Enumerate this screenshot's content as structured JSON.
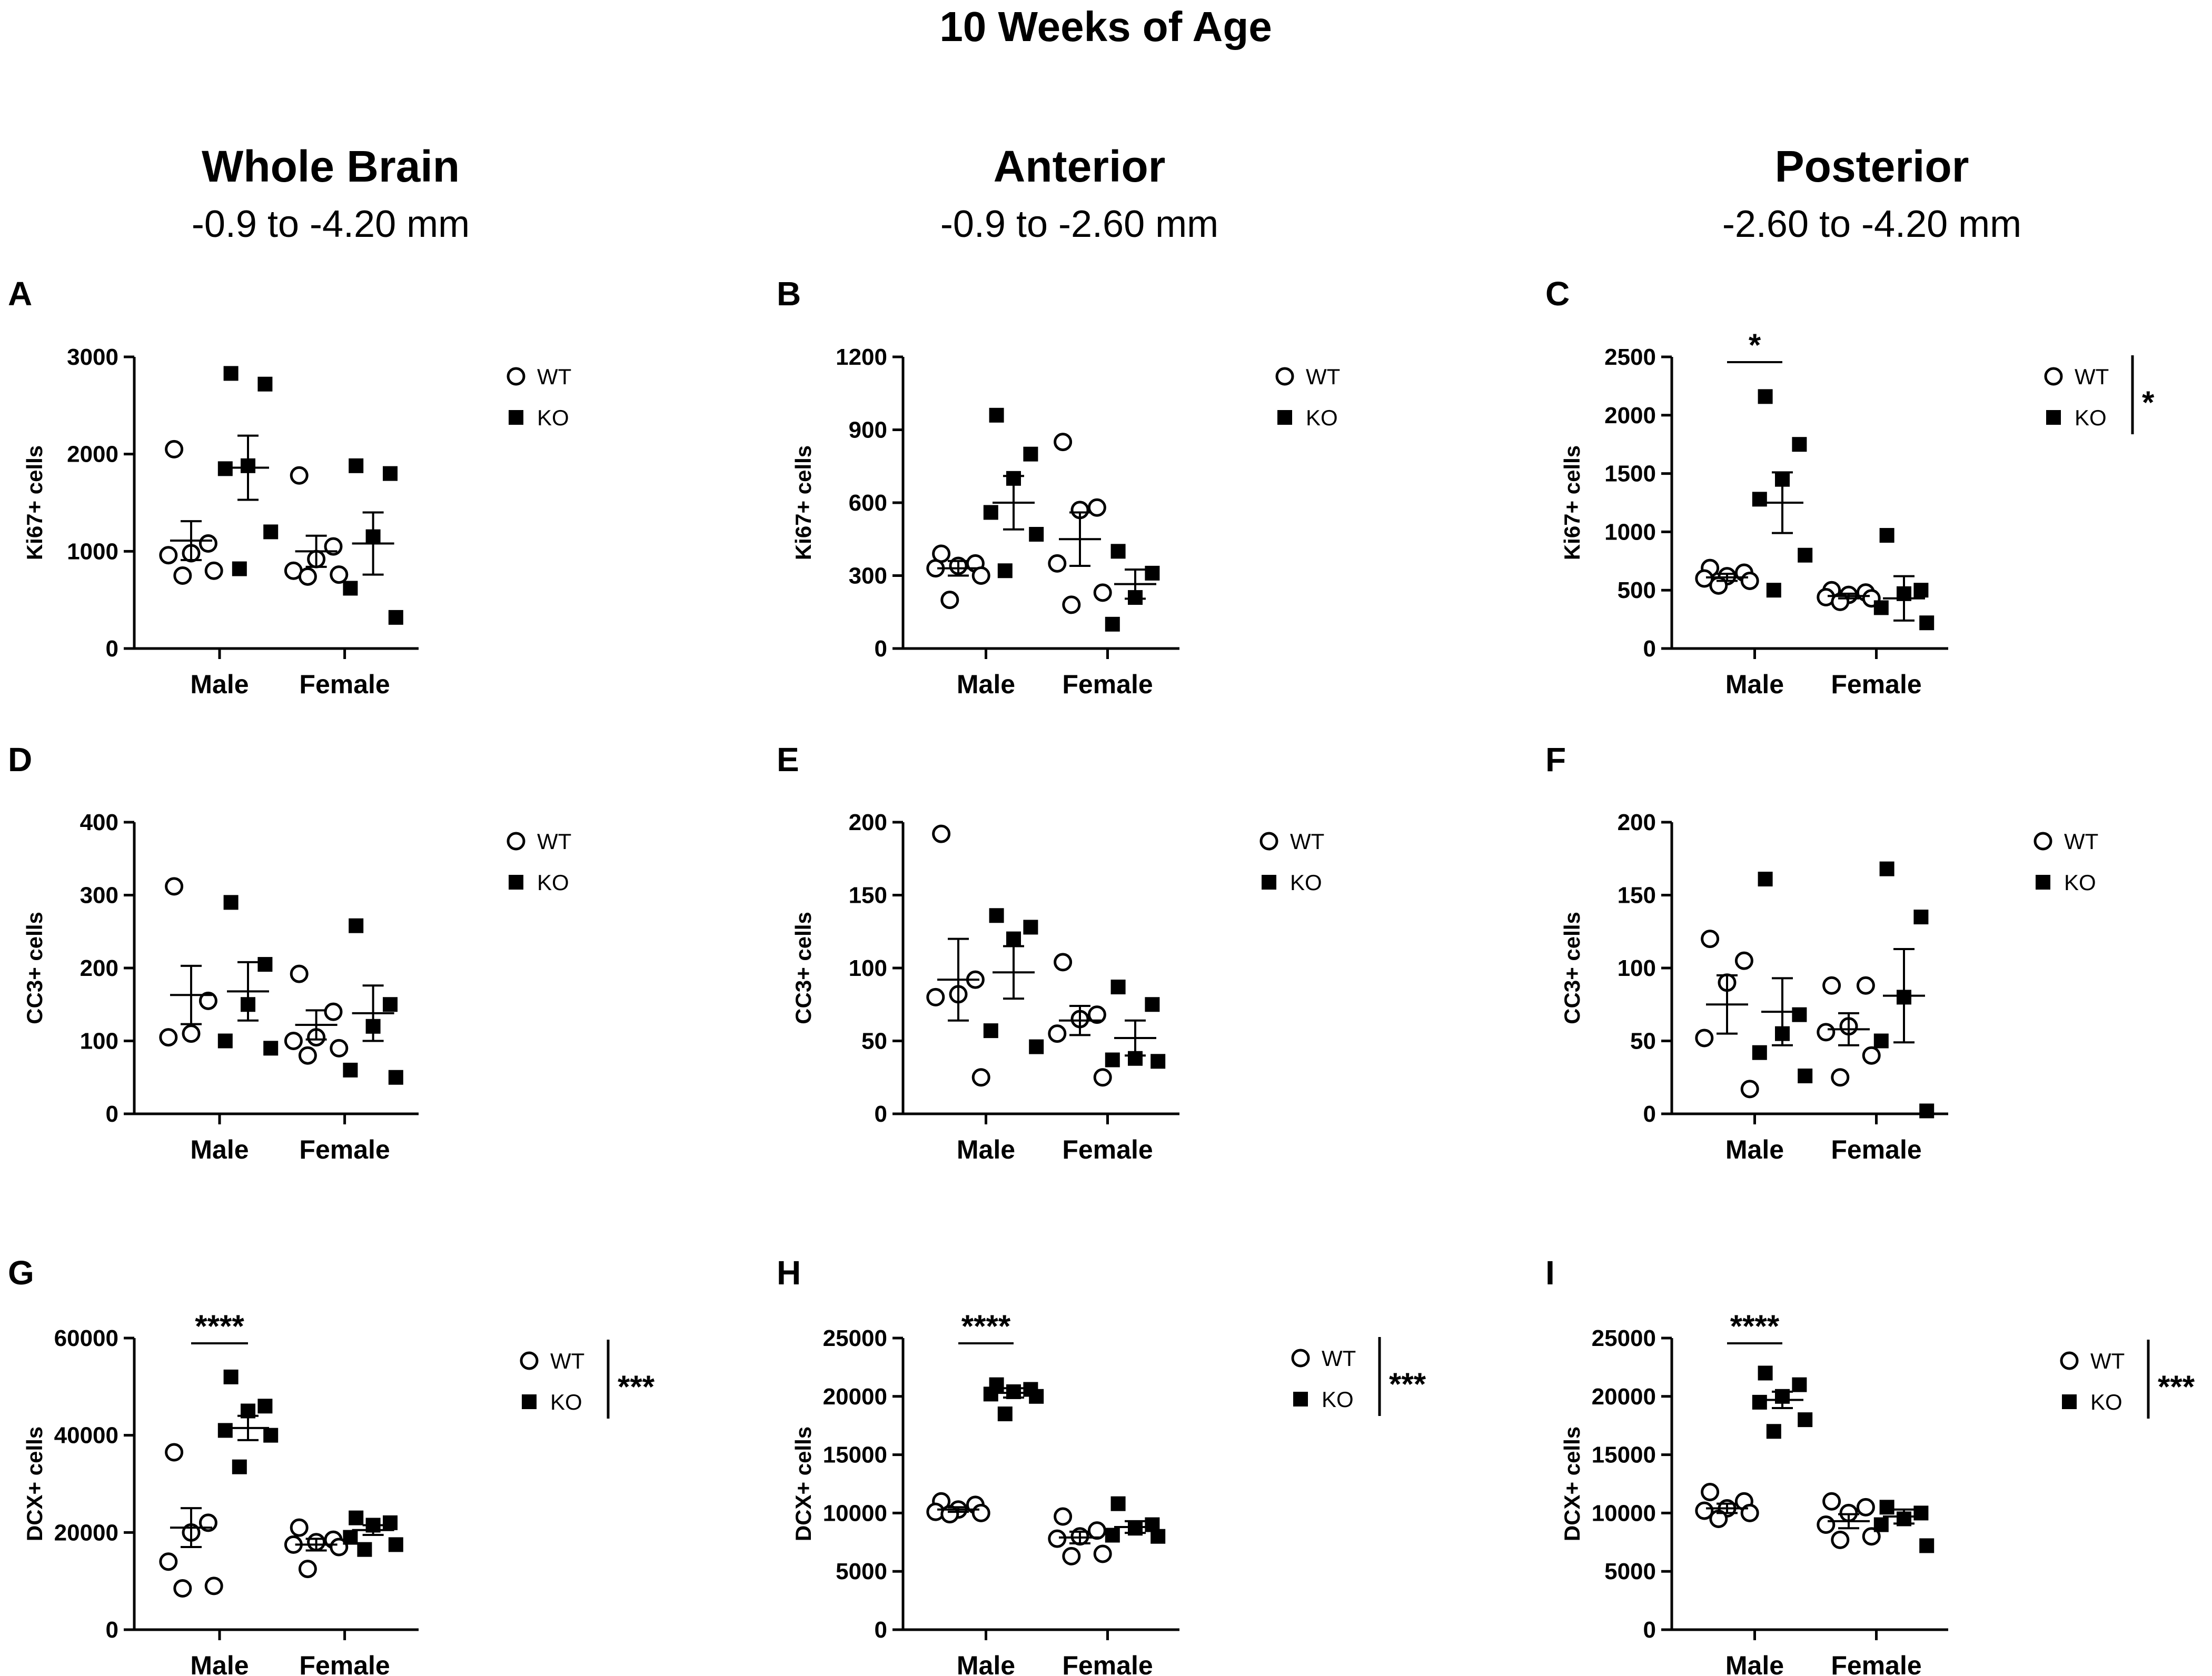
{
  "figure": {
    "title": "10 Weeks of Age",
    "columns": [
      {
        "title": "Whole Brain",
        "subtitle": "-0.9 to -4.20 mm"
      },
      {
        "title": "Anterior",
        "subtitle": "-0.9 to -2.60 mm"
      },
      {
        "title": "Posterior",
        "subtitle": "-2.60 to -4.20 mm"
      }
    ]
  },
  "colors": {
    "wt_fill": "#ffffff",
    "ko_fill": "#000000",
    "stroke": "#000000"
  },
  "chart_data": [
    {
      "panel": "A",
      "type": "scatter",
      "ylabel": "Ki67+ cells",
      "ylim": [
        0,
        3000
      ],
      "yticks": [
        0,
        1000,
        2000,
        3000
      ],
      "categories": [
        "Male",
        "Female"
      ],
      "legend": [
        "WT",
        "KO"
      ],
      "legend_sig": "",
      "legend_position": "right",
      "series": [
        {
          "name": "WT",
          "marker": "circle",
          "points": [
            [
              2050,
              1080,
              980,
              960,
              800,
              750
            ],
            [
              1780,
              1050,
              920,
              800,
              760,
              740
            ]
          ],
          "mean": [
            1110,
            1000
          ],
          "sem": [
            200,
            160
          ]
        },
        {
          "name": "KO",
          "marker": "square",
          "points": [
            [
              2830,
              2720,
              1880,
              1850,
              1200,
              820
            ],
            [
              1880,
              1800,
              1150,
              620,
              320
            ]
          ],
          "mean": [
            1860,
            1080
          ],
          "sem": [
            330,
            320
          ]
        }
      ],
      "comparisons": []
    },
    {
      "panel": "B",
      "type": "scatter",
      "ylabel": "Ki67+ cells",
      "ylim": [
        0,
        1200
      ],
      "yticks": [
        0,
        300,
        600,
        900,
        1200
      ],
      "categories": [
        "Male",
        "Female"
      ],
      "legend": [
        "WT",
        "KO"
      ],
      "legend_sig": "",
      "legend_position": "right",
      "series": [
        {
          "name": "WT",
          "marker": "circle",
          "points": [
            [
              390,
              350,
              340,
              330,
              300,
              200
            ],
            [
              850,
              580,
              570,
              350,
              230,
              180
            ]
          ],
          "mean": [
            330,
            450
          ],
          "sem": [
            30,
            110
          ]
        },
        {
          "name": "KO",
          "marker": "square",
          "points": [
            [
              960,
              800,
              700,
              560,
              470,
              320
            ],
            [
              400,
              310,
              210,
              100
            ]
          ],
          "mean": [
            600,
            265
          ],
          "sem": [
            110,
            60
          ]
        }
      ],
      "comparisons": []
    },
    {
      "panel": "C",
      "type": "scatter",
      "ylabel": "Ki67+ cells",
      "ylim": [
        0,
        2500
      ],
      "yticks": [
        0,
        500,
        1000,
        1500,
        2000,
        2500
      ],
      "categories": [
        "Male",
        "Female"
      ],
      "legend": [
        "WT",
        "KO"
      ],
      "legend_sig": "*",
      "legend_position": "right",
      "series": [
        {
          "name": "WT",
          "marker": "circle",
          "points": [
            [
              690,
              650,
              620,
              600,
              580,
              540
            ],
            [
              500,
              480,
              460,
              440,
              430,
              400
            ]
          ],
          "mean": [
            610,
            450
          ],
          "sem": [
            30,
            20
          ]
        },
        {
          "name": "KO",
          "marker": "square",
          "points": [
            [
              2160,
              1750,
              1450,
              1280,
              800,
              500
            ],
            [
              970,
              500,
              470,
              350,
              220
            ]
          ],
          "mean": [
            1250,
            430
          ],
          "sem": [
            260,
            190
          ]
        }
      ],
      "comparisons": [
        {
          "category": "Male",
          "label": "*"
        }
      ]
    },
    {
      "panel": "D",
      "type": "scatter",
      "ylabel": "CC3+ cells",
      "ylim": [
        0,
        400
      ],
      "yticks": [
        0,
        100,
        200,
        300,
        400
      ],
      "categories": [
        "Male",
        "Female"
      ],
      "legend": [
        "WT",
        "KO"
      ],
      "legend_sig": "",
      "legend_position": "right",
      "series": [
        {
          "name": "WT",
          "marker": "circle",
          "points": [
            [
              312,
              155,
              110,
              105
            ],
            [
              192,
              140,
              105,
              100,
              90,
              80
            ]
          ],
          "mean": [
            163,
            122
          ],
          "sem": [
            40,
            20
          ]
        },
        {
          "name": "KO",
          "marker": "square",
          "points": [
            [
              290,
              205,
              150,
              100,
              90
            ],
            [
              258,
              150,
              120,
              60,
              50
            ]
          ],
          "mean": [
            168,
            138
          ],
          "sem": [
            40,
            38
          ]
        }
      ],
      "comparisons": []
    },
    {
      "panel": "E",
      "type": "scatter",
      "ylabel": "CC3+ cells",
      "ylim": [
        0,
        200
      ],
      "yticks": [
        0,
        50,
        100,
        150,
        200
      ],
      "categories": [
        "Male",
        "Female"
      ],
      "legend": [
        "WT",
        "KO"
      ],
      "legend_sig": "",
      "legend_position": "right",
      "series": [
        {
          "name": "WT",
          "marker": "circle",
          "points": [
            [
              192,
              92,
              82,
              80,
              25
            ],
            [
              104,
              68,
              65,
              55,
              25
            ]
          ],
          "mean": [
            92,
            64
          ],
          "sem": [
            28,
            10
          ]
        },
        {
          "name": "KO",
          "marker": "square",
          "points": [
            [
              136,
              128,
              120,
              57,
              46
            ],
            [
              87,
              75,
              38,
              37,
              36
            ]
          ],
          "mean": [
            97,
            52
          ],
          "sem": [
            18,
            12
          ]
        }
      ],
      "comparisons": []
    },
    {
      "panel": "F",
      "type": "scatter",
      "ylabel": "CC3+ cells",
      "ylim": [
        0,
        200
      ],
      "yticks": [
        0,
        50,
        100,
        150,
        200
      ],
      "categories": [
        "Male",
        "Female"
      ],
      "legend": [
        "WT",
        "KO"
      ],
      "legend_sig": "",
      "legend_position": "right",
      "series": [
        {
          "name": "WT",
          "marker": "circle",
          "points": [
            [
              120,
              105,
              90,
              52,
              17
            ],
            [
              88,
              88,
              60,
              56,
              40,
              25
            ]
          ],
          "mean": [
            75,
            58
          ],
          "sem": [
            20,
            11
          ]
        },
        {
          "name": "KO",
          "marker": "square",
          "points": [
            [
              161,
              68,
              55,
              42,
              26
            ],
            [
              168,
              135,
              80,
              50,
              2
            ]
          ],
          "mean": [
            70,
            81
          ],
          "sem": [
            23,
            32
          ]
        }
      ],
      "comparisons": []
    },
    {
      "panel": "G",
      "type": "scatter",
      "ylabel": "DCX+ cells",
      "ylim": [
        0,
        60000
      ],
      "yticks": [
        0,
        20000,
        40000,
        60000
      ],
      "categories": [
        "Male",
        "Female"
      ],
      "legend": [
        "WT",
        "KO"
      ],
      "legend_sig": "***",
      "legend_position": "right",
      "series": [
        {
          "name": "WT",
          "marker": "circle",
          "points": [
            [
              36500,
              22000,
              20000,
              14000,
              9000,
              8500
            ],
            [
              21000,
              18500,
              18000,
              17500,
              17000,
              12500
            ]
          ],
          "mean": [
            21000,
            17500
          ],
          "sem": [
            4000,
            1200
          ]
        },
        {
          "name": "KO",
          "marker": "square",
          "points": [
            [
              52000,
              46000,
              45000,
              41000,
              40000,
              33500
            ],
            [
              23000,
              22000,
              21500,
              19000,
              17500,
              16500
            ]
          ],
          "mean": [
            41500,
            20500
          ],
          "sem": [
            2500,
            1000
          ]
        }
      ],
      "comparisons": [
        {
          "category": "Male",
          "label": "****"
        }
      ]
    },
    {
      "panel": "H",
      "type": "scatter",
      "ylabel": "DCX+ cells",
      "ylim": [
        0,
        25000
      ],
      "yticks": [
        0,
        5000,
        10000,
        15000,
        20000,
        25000
      ],
      "categories": [
        "Male",
        "Female"
      ],
      "legend": [
        "WT",
        "KO"
      ],
      "legend_sig": "***",
      "legend_position": "right",
      "series": [
        {
          "name": "WT",
          "marker": "circle",
          "points": [
            [
              11000,
              10700,
              10300,
              10100,
              10000,
              9900
            ],
            [
              9700,
              8500,
              8000,
              7800,
              6500,
              6300
            ]
          ],
          "mean": [
            10300,
            7900
          ],
          "sem": [
            200,
            500
          ]
        },
        {
          "name": "KO",
          "marker": "square",
          "points": [
            [
              21000,
              20600,
              20400,
              20200,
              20000,
              18500
            ],
            [
              10800,
              9000,
              8700,
              8100,
              8000
            ]
          ],
          "mean": [
            20300,
            8800
          ],
          "sem": [
            400,
            500
          ]
        }
      ],
      "comparisons": [
        {
          "category": "Male",
          "label": "****"
        }
      ]
    },
    {
      "panel": "I",
      "type": "scatter",
      "ylabel": "DCX+ cells",
      "ylim": [
        0,
        25000
      ],
      "yticks": [
        0,
        5000,
        10000,
        15000,
        20000,
        25000
      ],
      "categories": [
        "Male",
        "Female"
      ],
      "legend": [
        "WT",
        "KO"
      ],
      "legend_sig": "***",
      "legend_position": "right",
      "series": [
        {
          "name": "WT",
          "marker": "circle",
          "points": [
            [
              11800,
              11000,
              10400,
              10200,
              10000,
              9500
            ],
            [
              11000,
              10500,
              10000,
              9000,
              8000,
              7700
            ]
          ],
          "mean": [
            10400,
            9300
          ],
          "sem": [
            400,
            600
          ]
        },
        {
          "name": "KO",
          "marker": "square",
          "points": [
            [
              22000,
              21000,
              20000,
              19500,
              18000,
              17000
            ],
            [
              10500,
              10000,
              9500,
              9000,
              7200
            ]
          ],
          "mean": [
            19700,
            9700
          ],
          "sem": [
            700,
            600
          ]
        }
      ],
      "comparisons": [
        {
          "category": "Male",
          "label": "****"
        }
      ]
    }
  ]
}
